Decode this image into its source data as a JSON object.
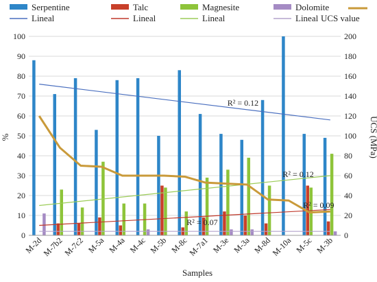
{
  "chart_data": {
    "type": "bar",
    "title": "",
    "xlabel": "Samples",
    "ylabel": "%",
    "ylabel_right": "UCS (MPa)",
    "ylim": [
      0,
      100
    ],
    "ylim_right": [
      0,
      200
    ],
    "yticks": [
      "0",
      "10",
      "20",
      "30",
      "40",
      "50",
      "60",
      "70",
      "80",
      "90",
      "100"
    ],
    "yticks_right": [
      "0",
      "20",
      "40",
      "60",
      "80",
      "100",
      "120",
      "140",
      "160",
      "180",
      "200"
    ],
    "grid": true,
    "legend_position": "top",
    "categories": [
      "M-2d",
      "M-7b2",
      "M-7c2",
      "M-5a",
      "M-4a",
      "M-4c",
      "M-5b",
      "M-8c",
      "M-7a1",
      "M-3e",
      "M-3a",
      "M-8d",
      "M-10a",
      "M-5c",
      "M-3b"
    ],
    "series": [
      {
        "name": "Serpentine",
        "color": "#2e86c8",
        "values": [
          88,
          71,
          79,
          53,
          78,
          79,
          50,
          83,
          61,
          51,
          48,
          68,
          100,
          51,
          49
        ]
      },
      {
        "name": "Talc",
        "color": "#c8402a",
        "values": [
          0,
          6,
          6,
          9,
          5,
          0,
          25,
          4,
          9,
          12,
          10,
          6,
          0,
          25,
          7
        ]
      },
      {
        "name": "Magnesite",
        "color": "#8ec43a",
        "values": [
          0,
          23,
          14,
          37,
          16,
          16,
          24,
          12,
          29,
          33,
          39,
          25,
          0,
          24,
          41
        ]
      },
      {
        "name": "Dolomite",
        "color": "#a58bc4",
        "values": [
          11,
          0,
          0,
          0,
          0,
          3,
          0,
          0,
          0,
          3,
          3,
          0,
          0,
          0,
          2
        ]
      },
      {
        "name": "UCS value",
        "axis": "right",
        "color": "#c99a3a",
        "values": [
          120,
          88,
          70,
          69,
          60,
          60,
          60,
          59,
          53,
          52,
          51,
          36,
          35,
          23,
          24
        ]
      }
    ],
    "trendlines": [
      {
        "name": "Lineal",
        "of": "Serpentine",
        "color": "#4a6fbf",
        "start": 76,
        "end": 58
      },
      {
        "name": "Lineal",
        "of": "Talc",
        "color": "#c0392b",
        "start": 5,
        "end": 13
      },
      {
        "name": "Lineal",
        "of": "Magnesite",
        "color": "#9ccc58",
        "start": 15,
        "end": 30
      },
      {
        "name": "Lineal",
        "of": "Dolomite",
        "color": "#b3a3cc",
        "start": 2,
        "end": 2
      }
    ],
    "annotations": [
      {
        "text": "R² = 0.12",
        "series": "Serpentine"
      },
      {
        "text": "R² = 0.12",
        "series": "Magnesite"
      },
      {
        "text": "R² = 0.09",
        "series": "Talc"
      },
      {
        "text": "R² = 0.07",
        "series": "Dolomite"
      }
    ]
  }
}
